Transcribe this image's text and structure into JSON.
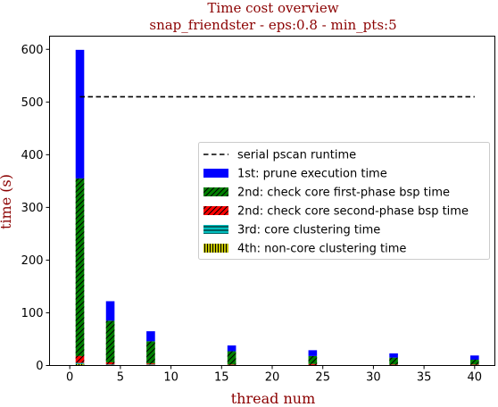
{
  "chart_data": {
    "type": "bar",
    "title": "Time cost overview",
    "subtitle": "snap_friendster - eps:0.8 - min_pts:5",
    "xlabel": "thread num",
    "ylabel": "time (s)",
    "xlim": [
      -2,
      42
    ],
    "ylim": [
      0,
      625
    ],
    "xticks": [
      0,
      5,
      10,
      15,
      20,
      25,
      30,
      35,
      40
    ],
    "yticks": [
      0,
      100,
      200,
      300,
      400,
      500,
      600
    ],
    "grid": false,
    "legend_position": "center-right",
    "x": [
      1,
      4,
      8,
      16,
      24,
      32,
      40
    ],
    "serial_runtime": 510,
    "serial_runtime_label": "serial pscan runtime",
    "series": [
      {
        "name": "4th: non-core clustering time",
        "color": "#bfbf00",
        "hatch": "vertical",
        "values": [
          3,
          1,
          1,
          0.5,
          0.5,
          0.5,
          0.5
        ]
      },
      {
        "name": "3rd: core clustering time",
        "color": "#00bfbf",
        "hatch": "horizontal",
        "values": [
          2,
          1,
          1,
          0.5,
          0.5,
          0.5,
          0.5
        ]
      },
      {
        "name": "2nd: check core second-phase bsp time",
        "color": "#ff0000",
        "hatch": "diagonal",
        "values": [
          13,
          4,
          2,
          1,
          2,
          1,
          1
        ]
      },
      {
        "name": "2nd: check core first-phase bsp time",
        "color": "#008000",
        "hatch": "diagonal",
        "values": [
          337,
          79,
          42,
          25,
          15,
          13,
          9
        ]
      },
      {
        "name": "1st: prune execution time",
        "color": "#0000ff",
        "hatch": "none",
        "values": [
          244,
          37,
          19,
          11,
          11,
          8,
          8
        ]
      }
    ],
    "legend_order": [
      "serial pscan runtime",
      "1st: prune execution time",
      "2nd: check core first-phase bsp time",
      "2nd: check core second-phase bsp time",
      "3rd: core clustering time",
      "4th: non-core clustering time"
    ],
    "colors": {
      "title": "#8b0000",
      "axis_label": "#8b0000",
      "axis": "#000000"
    }
  }
}
